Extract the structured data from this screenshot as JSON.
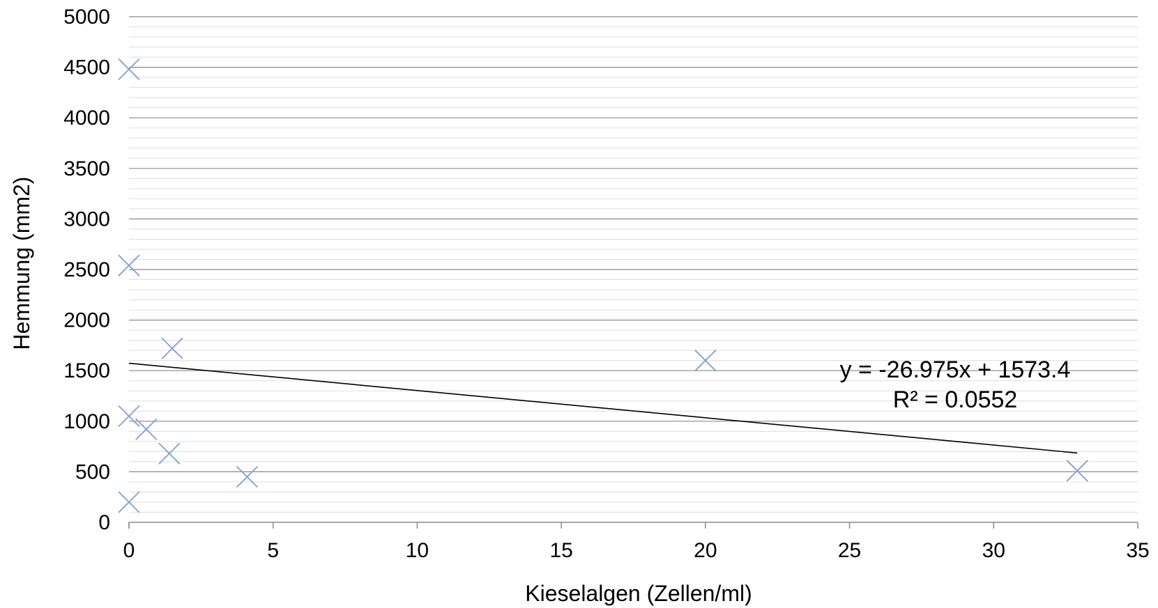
{
  "chart_data": {
    "type": "scatter",
    "title": "",
    "xlabel": "Kieselalgen (Zellen/ml)",
    "ylabel": "Hemmung (mm2)",
    "xlim": [
      0,
      35
    ],
    "ylim": [
      0,
      5000
    ],
    "x_ticks": [
      0,
      5,
      10,
      15,
      20,
      25,
      30,
      35
    ],
    "y_ticks": [
      0,
      500,
      1000,
      1500,
      2000,
      2500,
      3000,
      3500,
      4000,
      4500,
      5000
    ],
    "grid": {
      "major_y": true,
      "minor_y": true,
      "major_y_step": 500,
      "minor_y_step": 100
    },
    "legend": "none",
    "marker": "x",
    "colors": {
      "marker": "#7f9fd3",
      "trendline": "#000000",
      "major_grid": "#8a8a8a",
      "minor_grid": "#dddddd",
      "axis": "#8a8a8a"
    },
    "series": [
      {
        "points": [
          {
            "x": 0.0,
            "y": 4480
          },
          {
            "x": 0.0,
            "y": 2540
          },
          {
            "x": 0.0,
            "y": 1050
          },
          {
            "x": 0.0,
            "y": 200
          },
          {
            "x": 0.6,
            "y": 920
          },
          {
            "x": 1.4,
            "y": 680
          },
          {
            "x": 1.5,
            "y": 1720
          },
          {
            "x": 4.1,
            "y": 450
          },
          {
            "x": 20.0,
            "y": 1600
          },
          {
            "x": 32.9,
            "y": 510
          }
        ]
      }
    ],
    "trendline": {
      "slope": -26.975,
      "intercept": 1573.4,
      "x_range": [
        0,
        32.9
      ],
      "equation": "y = -26.975x + 1573.4",
      "r_squared": "R² = 0.0552"
    }
  }
}
